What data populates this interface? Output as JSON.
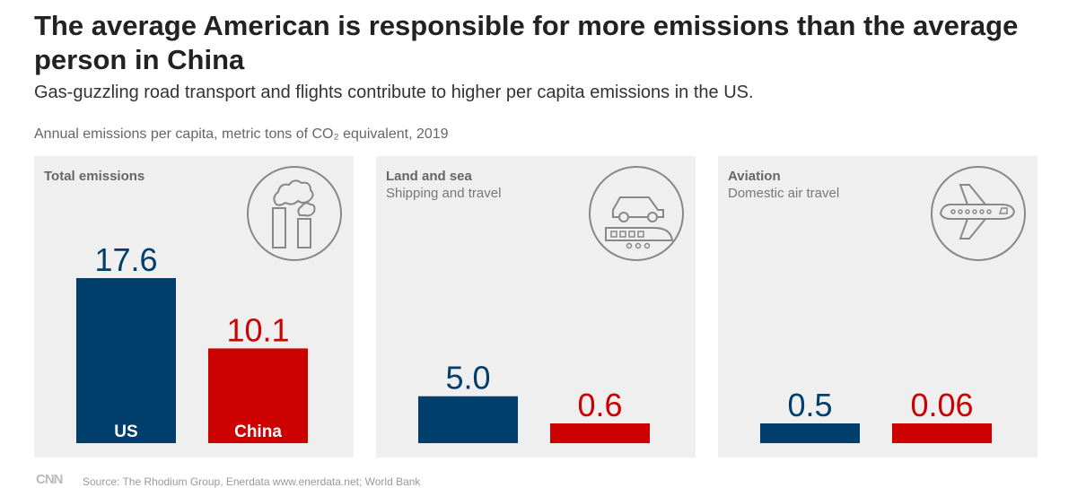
{
  "header": {
    "title": "The average American is responsible for more emissions than the average person in China",
    "subtitle": "Gas-guzzling road transport and flights contribute to higher per capita emissions in the US.",
    "units": "Annual emissions per capita, metric tons of CO₂ equivalent, 2019"
  },
  "colors": {
    "us": "#003e6b",
    "china": "#cc0000",
    "panel_bg": "#efefef"
  },
  "panels": [
    {
      "title": "Total emissions",
      "subtitle": "",
      "icon": "factory-icon"
    },
    {
      "title": "Land and sea",
      "subtitle": "Shipping and travel",
      "icon": "car-train-icon"
    },
    {
      "title": "Aviation",
      "subtitle": "Domestic air travel",
      "icon": "airplane-icon"
    }
  ],
  "chart_data": [
    {
      "type": "bar",
      "title": "Total emissions",
      "categories": [
        "US",
        "China"
      ],
      "values": [
        17.6,
        10.1
      ],
      "value_labels": [
        "17.6",
        "10.1"
      ]
    },
    {
      "type": "bar",
      "title": "Land and sea",
      "categories": [
        "US",
        "China"
      ],
      "values": [
        5.0,
        0.6
      ],
      "value_labels": [
        "5.0",
        "0.6"
      ]
    },
    {
      "type": "bar",
      "title": "Aviation",
      "categories": [
        "US",
        "China"
      ],
      "values": [
        0.5,
        0.06
      ],
      "value_labels": [
        "0.5",
        "0.06"
      ]
    }
  ],
  "footer": {
    "logo": "CNN",
    "source": "Source: The Rhodium Group, Enerdata www.enerdata.net; World Bank"
  }
}
